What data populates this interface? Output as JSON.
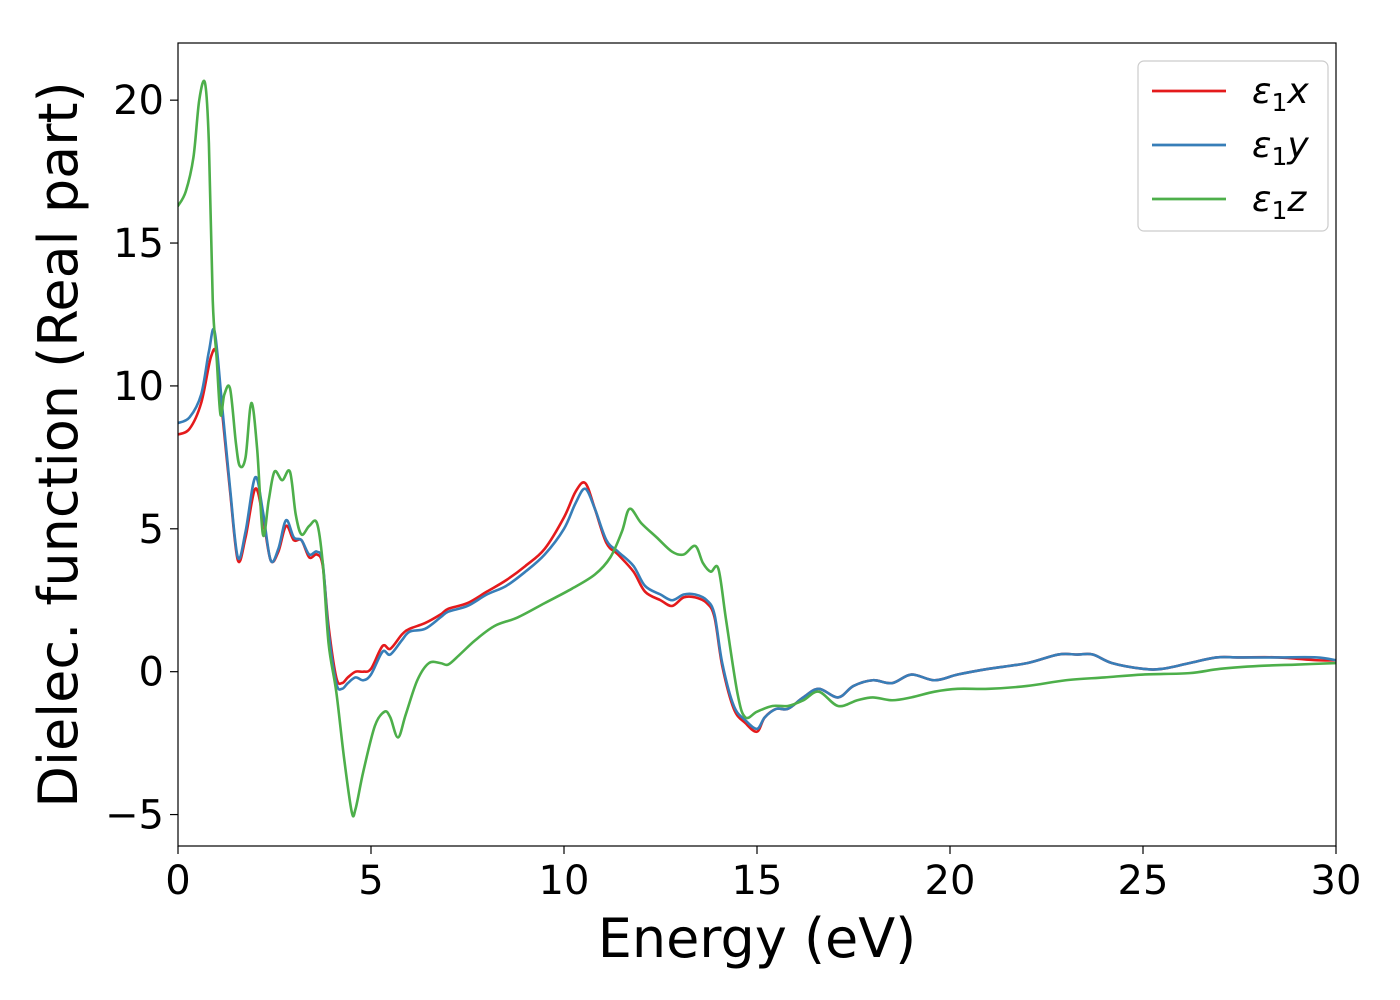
{
  "chart_data": {
    "type": "line",
    "title": "",
    "xlabel": "Energy (eV)",
    "ylabel": "Dielec. function (Real part)",
    "xlim": [
      0,
      30
    ],
    "ylim": [
      -6.1,
      22
    ],
    "xticks": [
      0,
      5,
      10,
      15,
      20,
      25,
      30
    ],
    "yticks": [
      -5,
      0,
      5,
      10,
      15,
      20
    ],
    "ytick_labels": [
      "−5",
      "0",
      "5",
      "10",
      "15",
      "20"
    ],
    "grid": false,
    "legend_position": "top-right",
    "series": [
      {
        "name": "ε₁x",
        "name_parts": {
          "main": "ε",
          "sub": "1",
          "axis": "x"
        },
        "color": "#e41a1c",
        "x": [
          0,
          0.3,
          0.6,
          0.85,
          1.0,
          1.15,
          1.35,
          1.55,
          1.75,
          2.0,
          2.2,
          2.4,
          2.6,
          2.8,
          3.0,
          3.2,
          3.4,
          3.6,
          3.75,
          3.9,
          4.1,
          4.25,
          4.4,
          4.6,
          4.8,
          5.0,
          5.3,
          5.5,
          5.8,
          6.0,
          6.4,
          6.8,
          7.0,
          7.5,
          8.0,
          8.5,
          9.0,
          9.5,
          10.0,
          10.3,
          10.55,
          10.8,
          11.1,
          11.4,
          11.8,
          12.1,
          12.5,
          12.8,
          13.1,
          13.4,
          13.7,
          13.9,
          14.1,
          14.4,
          14.7,
          15.0,
          15.2,
          15.5,
          15.8,
          16.2,
          16.6,
          17.1,
          17.5,
          18.0,
          18.5,
          19.0,
          19.6,
          20.2,
          21.0,
          22.0,
          22.8,
          23.3,
          23.7,
          24.2,
          25.0,
          25.5,
          26.2,
          26.9,
          27.5,
          28.5,
          29.5,
          30.0
        ],
        "values": [
          8.3,
          8.5,
          9.4,
          11.0,
          11.1,
          9.0,
          6.3,
          3.9,
          4.7,
          6.4,
          5.4,
          3.9,
          4.2,
          5.1,
          4.6,
          4.6,
          4.0,
          4.1,
          3.7,
          1.6,
          -0.2,
          -0.4,
          -0.2,
          0.0,
          0.0,
          0.1,
          0.9,
          0.8,
          1.3,
          1.5,
          1.7,
          2.0,
          2.2,
          2.4,
          2.8,
          3.2,
          3.7,
          4.3,
          5.4,
          6.3,
          6.6,
          5.7,
          4.5,
          4.1,
          3.5,
          2.8,
          2.5,
          2.3,
          2.6,
          2.6,
          2.4,
          1.9,
          0.2,
          -1.3,
          -1.8,
          -2.1,
          -1.6,
          -1.3,
          -1.3,
          -0.9,
          -0.6,
          -0.9,
          -0.5,
          -0.3,
          -0.4,
          -0.1,
          -0.3,
          -0.1,
          0.1,
          0.3,
          0.6,
          0.6,
          0.6,
          0.3,
          0.1,
          0.1,
          0.3,
          0.5,
          0.5,
          0.5,
          0.4,
          0.4
        ]
      },
      {
        "name": "ε₁y",
        "name_parts": {
          "main": "ε",
          "sub": "1",
          "axis": "y"
        },
        "color": "#377eb8",
        "x": [
          0,
          0.3,
          0.6,
          0.8,
          0.95,
          1.15,
          1.35,
          1.55,
          1.75,
          2.0,
          2.2,
          2.4,
          2.6,
          2.8,
          3.0,
          3.2,
          3.4,
          3.6,
          3.75,
          3.9,
          4.1,
          4.25,
          4.4,
          4.6,
          4.8,
          5.0,
          5.3,
          5.5,
          5.8,
          6.0,
          6.4,
          6.8,
          7.0,
          7.5,
          8.0,
          8.5,
          9.0,
          9.5,
          10.0,
          10.3,
          10.55,
          10.8,
          11.1,
          11.4,
          11.8,
          12.1,
          12.5,
          12.8,
          13.1,
          13.4,
          13.7,
          13.9,
          14.1,
          14.4,
          14.7,
          15.0,
          15.2,
          15.5,
          15.8,
          16.2,
          16.6,
          17.1,
          17.5,
          18.0,
          18.5,
          19.0,
          19.6,
          20.2,
          21.0,
          22.0,
          22.8,
          23.3,
          23.7,
          24.2,
          25.0,
          25.5,
          26.2,
          26.9,
          27.5,
          28.5,
          29.5,
          30.0
        ],
        "values": [
          8.7,
          8.9,
          9.7,
          11.2,
          11.9,
          9.2,
          6.4,
          4.0,
          4.9,
          6.8,
          5.6,
          3.9,
          4.3,
          5.3,
          4.7,
          4.6,
          4.1,
          4.2,
          3.8,
          1.4,
          -0.4,
          -0.6,
          -0.4,
          -0.2,
          -0.3,
          -0.1,
          0.7,
          0.6,
          1.1,
          1.4,
          1.5,
          1.9,
          2.1,
          2.3,
          2.7,
          3.0,
          3.5,
          4.1,
          5.0,
          5.9,
          6.4,
          5.7,
          4.6,
          4.2,
          3.7,
          3.0,
          2.7,
          2.5,
          2.7,
          2.7,
          2.5,
          2.0,
          0.3,
          -1.2,
          -1.7,
          -2.0,
          -1.6,
          -1.3,
          -1.3,
          -0.9,
          -0.6,
          -0.9,
          -0.5,
          -0.3,
          -0.4,
          -0.1,
          -0.3,
          -0.1,
          0.1,
          0.3,
          0.6,
          0.6,
          0.6,
          0.3,
          0.1,
          0.1,
          0.3,
          0.5,
          0.5,
          0.5,
          0.5,
          0.4
        ]
      },
      {
        "name": "ε₁z",
        "name_parts": {
          "main": "ε",
          "sub": "1",
          "axis": "z"
        },
        "color": "#4daf4a",
        "x": [
          0,
          0.2,
          0.4,
          0.55,
          0.7,
          0.8,
          0.9,
          1.0,
          1.1,
          1.2,
          1.35,
          1.5,
          1.6,
          1.75,
          1.9,
          2.05,
          2.2,
          2.35,
          2.5,
          2.7,
          2.9,
          3.05,
          3.2,
          3.4,
          3.6,
          3.75,
          3.9,
          4.1,
          4.3,
          4.5,
          4.6,
          4.8,
          5.1,
          5.35,
          5.5,
          5.7,
          5.9,
          6.2,
          6.5,
          6.8,
          7.0,
          7.3,
          7.7,
          8.2,
          8.8,
          9.5,
          10.2,
          10.8,
          11.2,
          11.5,
          11.7,
          12.0,
          12.4,
          12.8,
          13.1,
          13.4,
          13.6,
          13.8,
          14.0,
          14.2,
          14.5,
          14.7,
          15.0,
          15.4,
          15.8,
          16.2,
          16.6,
          17.1,
          17.6,
          18.0,
          18.5,
          19.0,
          19.6,
          20.2,
          21.0,
          22.0,
          23.0,
          24.0,
          25.0,
          26.2,
          27.0,
          28.0,
          29.0,
          30.0
        ],
        "values": [
          16.3,
          16.8,
          18.0,
          20.0,
          20.6,
          18.5,
          13.0,
          11.0,
          9.0,
          9.7,
          9.9,
          8.0,
          7.2,
          7.5,
          9.4,
          7.8,
          4.8,
          6.0,
          7.0,
          6.7,
          7.0,
          5.5,
          4.8,
          5.1,
          5.2,
          3.8,
          1.0,
          -0.7,
          -3.0,
          -4.9,
          -4.8,
          -3.5,
          -1.9,
          -1.4,
          -1.6,
          -2.3,
          -1.5,
          -0.3,
          0.3,
          0.3,
          0.25,
          0.6,
          1.1,
          1.6,
          1.9,
          2.4,
          2.9,
          3.4,
          4.0,
          4.9,
          5.7,
          5.2,
          4.7,
          4.2,
          4.1,
          4.4,
          3.8,
          3.5,
          3.6,
          1.8,
          -0.8,
          -1.6,
          -1.4,
          -1.2,
          -1.2,
          -1.0,
          -0.7,
          -1.2,
          -1.0,
          -0.9,
          -1.0,
          -0.9,
          -0.7,
          -0.6,
          -0.6,
          -0.5,
          -0.3,
          -0.2,
          -0.1,
          -0.05,
          0.1,
          0.2,
          0.25,
          0.3
        ]
      }
    ]
  }
}
